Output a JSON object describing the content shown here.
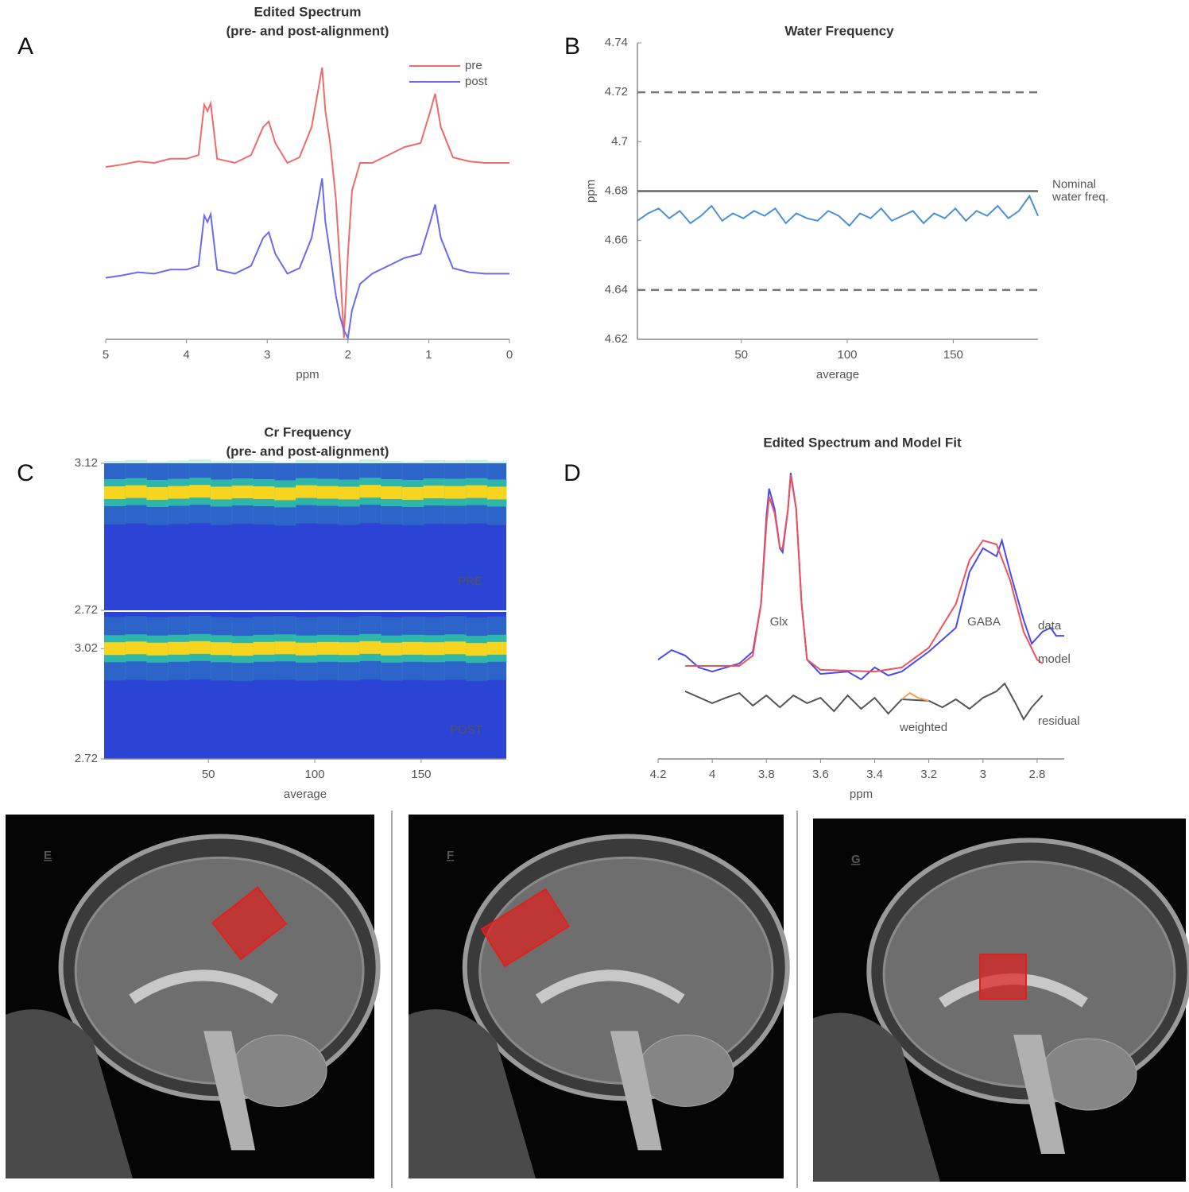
{
  "chart_data": [
    {
      "type": "line",
      "panel": "A",
      "title": [
        "Edited Spectrum",
        "(pre- and post-alignment)"
      ],
      "xlabel": "ppm",
      "xlim": [
        5,
        0
      ],
      "xticks": [
        5,
        4,
        3,
        2,
        1,
        0
      ],
      "ylim": [
        0,
        100
      ],
      "legend": "upper right",
      "x": [
        5,
        4.8,
        4.6,
        4.4,
        4.2,
        4.0,
        3.85,
        3.78,
        3.74,
        3.7,
        3.62,
        3.4,
        3.2,
        3.05,
        2.98,
        2.9,
        2.75,
        2.6,
        2.45,
        2.38,
        2.32,
        2.28,
        2.22,
        2.15,
        2.1,
        2.05,
        2.0,
        1.95,
        1.85,
        1.7,
        1.5,
        1.3,
        1.1,
        0.98,
        0.92,
        0.85,
        0.7,
        0.5,
        0.3,
        0
      ],
      "series": [
        {
          "name": "pre",
          "color": "#f06a6a",
          "values": [
            59.1,
            59.9,
            61.0,
            60.5,
            61.9,
            61.9,
            63.2,
            80.4,
            78.2,
            80.9,
            61.9,
            60.5,
            63.2,
            72.8,
            74.7,
            67.3,
            60.5,
            62.4,
            72.8,
            83.7,
            93.2,
            78.2,
            67.3,
            48.2,
            26.4,
            0.5,
            29.2,
            51.0,
            60.5,
            60.5,
            63.2,
            65.9,
            67.3,
            78.2,
            84.2,
            72.8,
            62.4,
            61.0,
            60.5,
            60.5
          ]
        },
        {
          "name": "post",
          "color": "#6a6af0",
          "values": [
            21.1,
            21.9,
            23.0,
            22.5,
            23.9,
            23.9,
            25.2,
            42.4,
            40.2,
            42.9,
            23.9,
            22.5,
            25.2,
            34.8,
            36.7,
            29.3,
            22.5,
            24.4,
            34.8,
            45.7,
            55.2,
            40.2,
            29.3,
            15.0,
            8.0,
            3.0,
            0.5,
            10.0,
            19.0,
            22.5,
            25.2,
            27.9,
            29.3,
            40.2,
            46.2,
            34.8,
            24.4,
            23.0,
            22.5,
            22.5
          ]
        }
      ]
    },
    {
      "type": "line",
      "panel": "B",
      "title": [
        "Water Frequency"
      ],
      "xlabel": "average",
      "ylabel": "ppm",
      "xlim": [
        1,
        190
      ],
      "xticks": [
        50,
        100,
        150
      ],
      "ylim": [
        4.62,
        4.74
      ],
      "yticks": [
        4.62,
        4.64,
        4.66,
        4.68,
        4.7,
        4.72,
        4.74
      ],
      "reference_lines": [
        {
          "value": 4.72,
          "style": "dashed"
        },
        {
          "value": 4.64,
          "style": "dashed"
        },
        {
          "value": 4.68,
          "style": "solid",
          "label": [
            "Nominal",
            "water freq."
          ]
        }
      ],
      "x": [
        1,
        6,
        11,
        16,
        21,
        26,
        31,
        36,
        41,
        46,
        51,
        56,
        61,
        66,
        71,
        76,
        81,
        86,
        91,
        96,
        101,
        106,
        111,
        116,
        121,
        126,
        131,
        136,
        141,
        146,
        151,
        156,
        161,
        166,
        171,
        176,
        181,
        186,
        190
      ],
      "series": [
        {
          "color": "#4a8fd8",
          "values": [
            4.668,
            4.671,
            4.673,
            4.669,
            4.672,
            4.667,
            4.67,
            4.674,
            4.668,
            4.671,
            4.669,
            4.672,
            4.67,
            4.673,
            4.667,
            4.671,
            4.669,
            4.668,
            4.672,
            4.67,
            4.666,
            4.671,
            4.669,
            4.673,
            4.668,
            4.67,
            4.672,
            4.667,
            4.671,
            4.669,
            4.673,
            4.668,
            4.672,
            4.67,
            4.674,
            4.669,
            4.672,
            4.678,
            4.67
          ]
        }
      ]
    },
    {
      "type": "heatmap",
      "panel": "C",
      "title": [
        "Cr Frequency",
        "(pre- and post-alignment)"
      ],
      "xlabel": "average",
      "xlim": [
        1,
        190
      ],
      "xticks": [
        50,
        100,
        150
      ],
      "colors": {
        "background": "#2c44d6",
        "band": "#2fc4a6",
        "peak": "#f7d51e"
      },
      "x": [
        1,
        11,
        21,
        31,
        41,
        51,
        61,
        71,
        81,
        91,
        101,
        111,
        121,
        131,
        141,
        151,
        161,
        171,
        181,
        190
      ],
      "panels": [
        {
          "name": "PRE",
          "ylim": [
            2.72,
            3.12
          ],
          "yticks": [
            3.12,
            2.72
          ],
          "peak": [
            3.04,
            3.043,
            3.038,
            3.041,
            3.044,
            3.039,
            3.042,
            3.04,
            3.037,
            3.043,
            3.041,
            3.039,
            3.044,
            3.04,
            3.038,
            3.042,
            3.041,
            3.043,
            3.039,
            3.041
          ]
        },
        {
          "name": "POST",
          "ylim": [
            2.72,
            3.12
          ],
          "yticks": [
            3.02,
            2.72
          ],
          "peak": [
            3.02,
            3.022,
            3.019,
            3.021,
            3.023,
            3.02,
            3.018,
            3.021,
            3.022,
            3.019,
            3.021,
            3.02,
            3.023,
            3.019,
            3.021,
            3.02,
            3.022,
            3.018,
            3.021,
            3.02
          ]
        }
      ]
    },
    {
      "type": "line",
      "panel": "D",
      "title": [
        "Edited Spectrum and Model Fit"
      ],
      "xlabel": "ppm",
      "xlim": [
        4.2,
        2.7
      ],
      "xticks": [
        4.2,
        4,
        3.8,
        3.6,
        3.4,
        3.2,
        3,
        2.8
      ],
      "ylim": [
        0,
        100
      ],
      "legend": "inline",
      "annotations": [
        "Glx",
        "GABA"
      ],
      "series": [
        {
          "name": "data",
          "color": "#4a4af0",
          "x": [
            4.2,
            4.15,
            4.1,
            4.05,
            4.0,
            3.95,
            3.9,
            3.85,
            3.82,
            3.8,
            3.79,
            3.77,
            3.75,
            3.74,
            3.72,
            3.71,
            3.69,
            3.67,
            3.65,
            3.6,
            3.5,
            3.45,
            3.4,
            3.35,
            3.3,
            3.2,
            3.1,
            3.05,
            3.0,
            2.95,
            2.93,
            2.9,
            2.85,
            2.82,
            2.78,
            2.75,
            2.73,
            2.7
          ],
          "values": [
            33.3,
            36.5,
            34.7,
            30.7,
            29.3,
            30.7,
            32,
            36,
            52,
            81.3,
            90.7,
            84,
            70.7,
            69.3,
            84,
            96,
            84,
            52,
            33.3,
            28.5,
            29.3,
            26.7,
            30.7,
            28,
            29.3,
            36,
            44,
            62.7,
            70.7,
            68,
            73.3,
            62.7,
            46.7,
            38.7,
            42.7,
            44,
            41.3,
            41.3
          ]
        },
        {
          "name": "model",
          "color": "#f0505a",
          "x": [
            4.1,
            3.9,
            3.85,
            3.82,
            3.8,
            3.79,
            3.77,
            3.75,
            3.74,
            3.72,
            3.71,
            3.69,
            3.67,
            3.65,
            3.6,
            3.4,
            3.3,
            3.2,
            3.1,
            3.05,
            3.0,
            2.95,
            2.9,
            2.85,
            2.8,
            2.78
          ],
          "values": [
            31.2,
            31.2,
            34.7,
            52,
            78.7,
            88,
            82.7,
            70.7,
            70.7,
            84,
            95.2,
            84,
            52,
            33.3,
            29.9,
            29.3,
            30.7,
            37.3,
            52,
            66.7,
            73.3,
            72,
            60,
            42.7,
            33.3,
            32
          ]
        },
        {
          "name": "residual",
          "color": "#555555",
          "x": [
            4.1,
            4.0,
            3.95,
            3.9,
            3.85,
            3.8,
            3.75,
            3.7,
            3.65,
            3.6,
            3.55,
            3.5,
            3.45,
            3.4,
            3.35,
            3.3,
            3.2,
            3.15,
            3.1,
            3.05,
            3.0,
            2.95,
            2.92,
            2.88,
            2.85,
            2.82,
            2.78
          ],
          "values": [
            22.7,
            18.7,
            20.5,
            22.1,
            17.9,
            21.3,
            17.3,
            21.3,
            18.7,
            20.5,
            16,
            21.3,
            16.8,
            20.5,
            15.2,
            20,
            19.5,
            17.3,
            20,
            16.8,
            20.5,
            22.7,
            25.3,
            18.7,
            13.3,
            17.3,
            21.3
          ]
        },
        {
          "name": "weighted",
          "color": "#f5a050",
          "x": [
            3.3,
            3.27,
            3.24,
            3.2
          ],
          "values": [
            20,
            22.1,
            20.5,
            19.5
          ]
        }
      ]
    }
  ],
  "images": [
    {
      "label": "E"
    },
    {
      "label": "F"
    },
    {
      "label": "G"
    }
  ]
}
